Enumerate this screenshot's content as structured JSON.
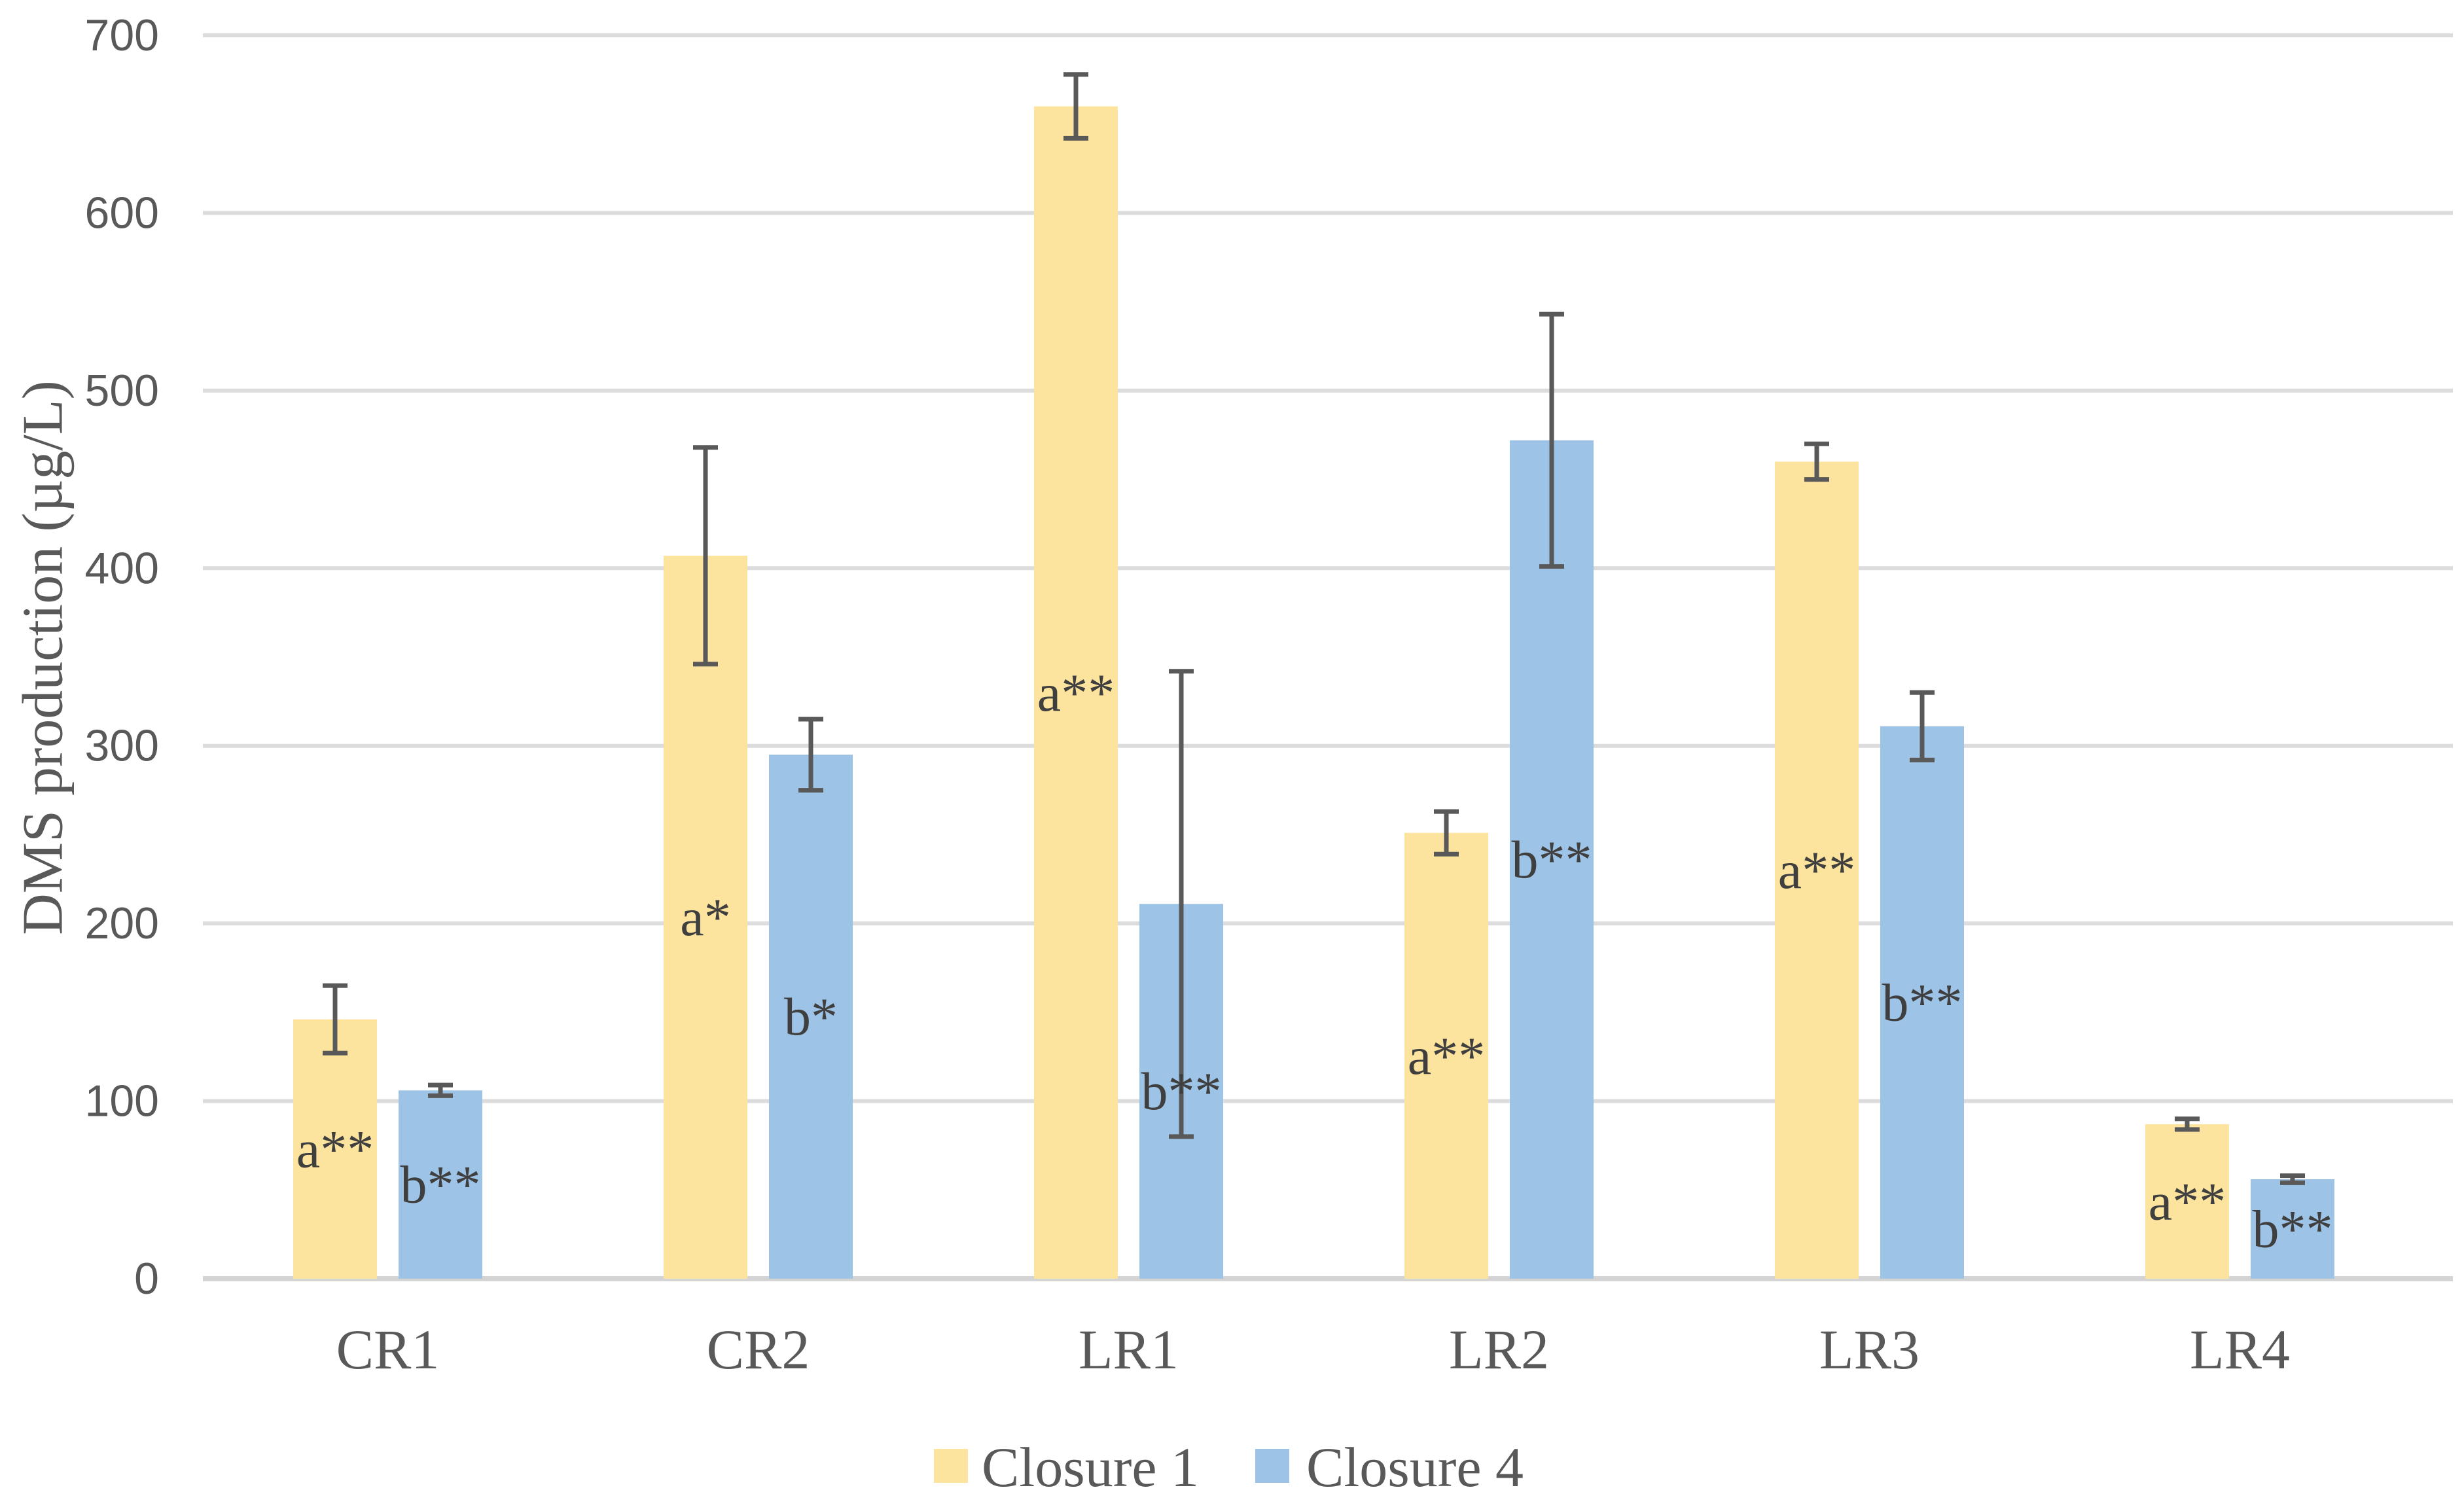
{
  "chart_data": {
    "type": "bar",
    "title": "",
    "xlabel": "",
    "ylabel": "DMS production (µg/L)",
    "ylim": [
      0,
      700
    ],
    "yticks": [
      0,
      100,
      200,
      300,
      400,
      500,
      600,
      700
    ],
    "grid": true,
    "legend_position": "bottom-center",
    "categories": [
      "CR1",
      "CR2",
      "LR1",
      "LR2",
      "LR3",
      "LR4"
    ],
    "series": [
      {
        "name": "Closure 1",
        "color": "#FCE49E",
        "values": [
          146,
          407,
          660,
          251,
          460,
          87
        ],
        "errors": [
          19,
          61,
          18,
          12,
          10,
          3
        ],
        "bar_labels": [
          "a**",
          "a*",
          "a**",
          "a**",
          "a**",
          "a**"
        ]
      },
      {
        "name": "Closure 4",
        "color": "#9DC3E6",
        "values": [
          106,
          295,
          211,
          472,
          311,
          56
        ],
        "errors": [
          3,
          20,
          131,
          71,
          19,
          2
        ],
        "bar_labels": [
          "b**",
          "b*",
          "b**",
          "b**",
          "b**",
          "b**"
        ]
      }
    ]
  },
  "colors": {
    "background": "#FFFFFF",
    "gridline": "#DCDCDC",
    "axis_line": "#D4D4D4",
    "error_bar": "#595959",
    "tick_text": "#595959",
    "category_text": "#595959",
    "annotation_text": "#3F3F3F",
    "legend_text": "#595959"
  }
}
